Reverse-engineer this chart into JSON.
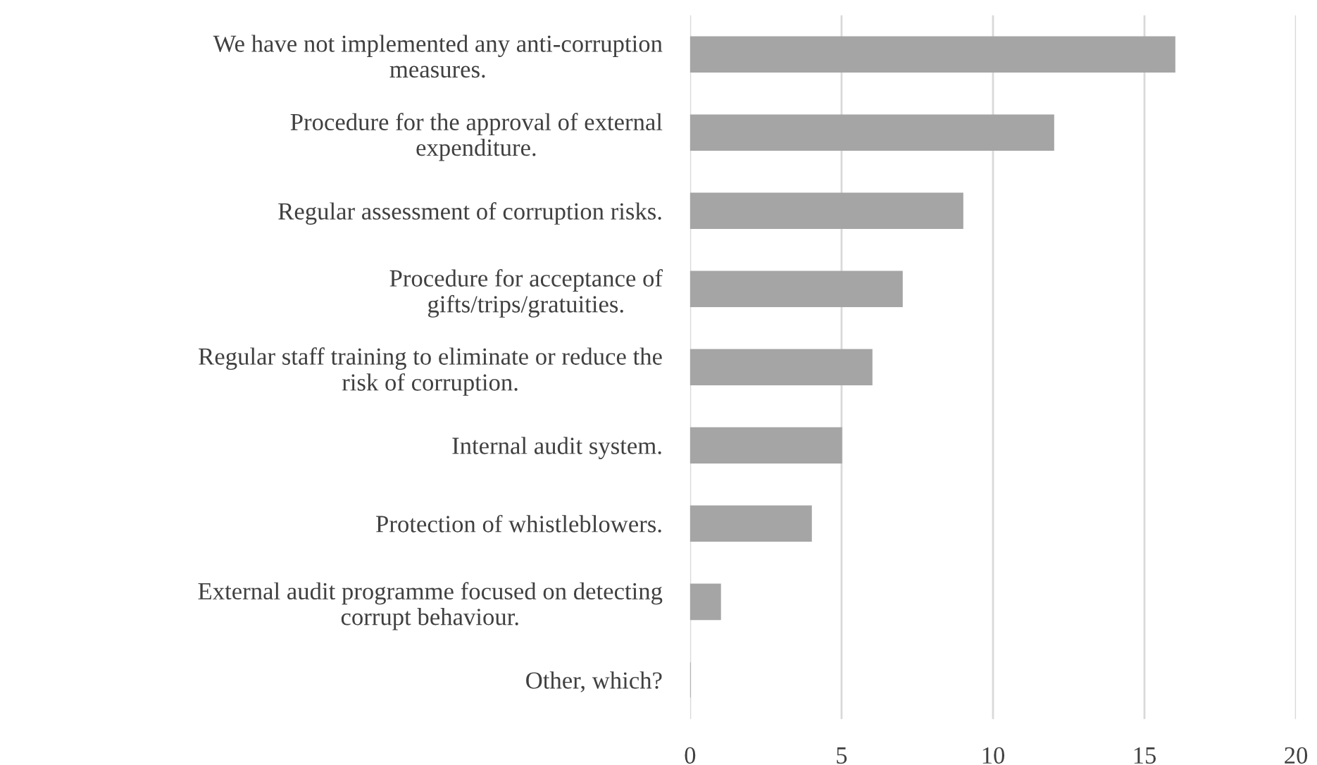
{
  "chart_data": {
    "type": "bar",
    "orientation": "horizontal",
    "categories": [
      "We have not implemented any anti-corruption\nmeasures.",
      "Procedure for the approval of external\nexpenditure.",
      "Regular assessment of corruption risks.",
      "Procedure for acceptance of\ngifts/trips/gratuities.",
      "Regular staff training to eliminate or reduce the\nrisk of corruption.",
      "Internal audit system.",
      "Protection of whistleblowers.",
      "External audit programme focused on detecting\ncorrupt behaviour.",
      "Other, which?"
    ],
    "values": [
      16,
      12,
      9,
      7,
      6,
      5,
      4,
      1,
      0
    ],
    "color": "#a5a5a5",
    "xlim": [
      0,
      20
    ],
    "xticks": [
      0,
      5,
      10,
      15,
      20
    ],
    "grid": "x",
    "legend": false
  }
}
